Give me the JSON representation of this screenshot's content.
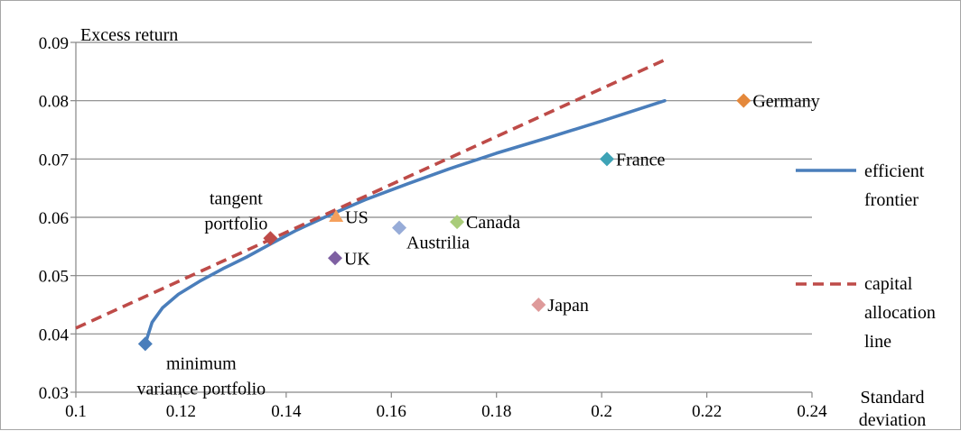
{
  "chart_data": {
    "type": "scatter",
    "title": "",
    "ylabel": "Excess return",
    "xlabel": [
      "Standard",
      "deviation"
    ],
    "xlim": [
      0.1,
      0.24
    ],
    "ylim": [
      0.03,
      0.09
    ],
    "x_ticks": [
      "0.1",
      "0.12",
      "0.14",
      "0.16",
      "0.18",
      "0.2",
      "0.22",
      "0.24"
    ],
    "y_ticks": [
      "0.03",
      "0.04",
      "0.05",
      "0.06",
      "0.07",
      "0.08",
      "0.09"
    ],
    "grid": "horizontal",
    "legend_position": "right",
    "series": [
      {
        "name": "efficient frontier",
        "legend_lines": [
          "efficient",
          "frontier"
        ],
        "style": "solid",
        "color": "#4a7ebb",
        "x": [
          0.1132,
          0.1145,
          0.1165,
          0.1195,
          0.1235,
          0.128,
          0.1325,
          0.137,
          0.142,
          0.148,
          0.155,
          0.163,
          0.171,
          0.18,
          0.19,
          0.2,
          0.212
        ],
        "y": [
          0.0383,
          0.042,
          0.0445,
          0.0468,
          0.049,
          0.0512,
          0.0532,
          0.0554,
          0.0578,
          0.0603,
          0.063,
          0.0657,
          0.0683,
          0.071,
          0.0737,
          0.0765,
          0.08
        ]
      },
      {
        "name": "capital allocation line",
        "legend_lines": [
          "capital",
          "allocation",
          "line"
        ],
        "style": "dashed",
        "color": "#be4b48",
        "x": [
          0.1,
          0.2125
        ],
        "y": [
          0.041,
          0.0872
        ]
      }
    ],
    "points": [
      {
        "label": "Germany",
        "x": 0.227,
        "y": 0.08,
        "marker": "diamond",
        "color": "#e4883b",
        "label_pos": "right"
      },
      {
        "label": "France",
        "x": 0.201,
        "y": 0.07,
        "marker": "diamond",
        "color": "#3ea3b6",
        "label_pos": "right"
      },
      {
        "label": "Canada",
        "x": 0.1725,
        "y": 0.0592,
        "marker": "diamond",
        "color": "#a9cc7a",
        "label_pos": "right"
      },
      {
        "label": "Austrilia",
        "x": 0.1615,
        "y": 0.0582,
        "marker": "diamond",
        "color": "#97acd8",
        "label_pos": "below-right"
      },
      {
        "label": "US",
        "x": 0.1495,
        "y": 0.0601,
        "marker": "triangle",
        "color": "#f5a05c",
        "label_pos": "right"
      },
      {
        "label": "UK",
        "x": 0.1493,
        "y": 0.053,
        "marker": "diamond",
        "color": "#7e60a2",
        "label_pos": "right"
      },
      {
        "label": "Japan",
        "x": 0.188,
        "y": 0.045,
        "marker": "diamond",
        "color": "#de9a9a",
        "label_pos": "right"
      },
      {
        "label": [
          "tangent",
          "portfolio"
        ],
        "x": 0.137,
        "y": 0.0564,
        "marker": "diamond",
        "color": "#be4b48",
        "label_pos": "left"
      },
      {
        "label": [
          "minimum",
          "variance portfolio"
        ],
        "x": 0.1132,
        "y": 0.0383,
        "marker": "diamond",
        "color": "#4a7ebb",
        "label_pos": "below-right"
      }
    ]
  }
}
